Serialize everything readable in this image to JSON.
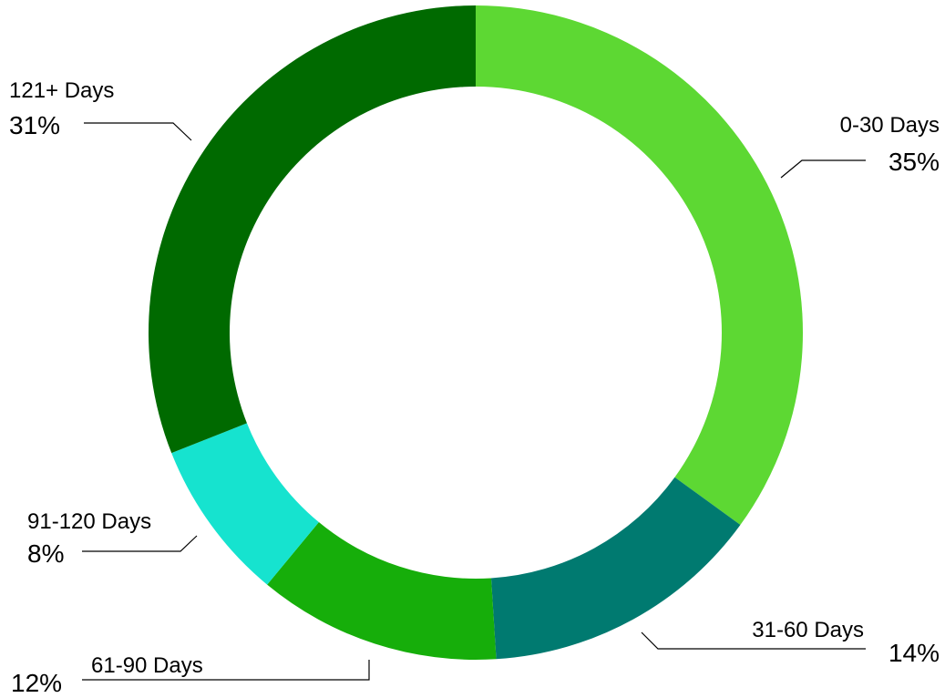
{
  "chart_data": {
    "type": "pie",
    "subtype": "donut",
    "title": "",
    "legend": "none",
    "slices": [
      {
        "label": "0-30 Days",
        "value": 35,
        "value_label": "35%",
        "color": "#5DD833"
      },
      {
        "label": "31-60 Days",
        "value": 14,
        "value_label": "14%",
        "color": "#007A70"
      },
      {
        "label": "61-90 Days",
        "value": 12,
        "value_label": "12%",
        "color": "#16AE0A"
      },
      {
        "label": "91-120 Days",
        "value": 8,
        "value_label": "8%",
        "color": "#16E3CF"
      },
      {
        "label": "121+ Days",
        "value": 31,
        "value_label": "31%",
        "color": "#006A00"
      }
    ]
  }
}
